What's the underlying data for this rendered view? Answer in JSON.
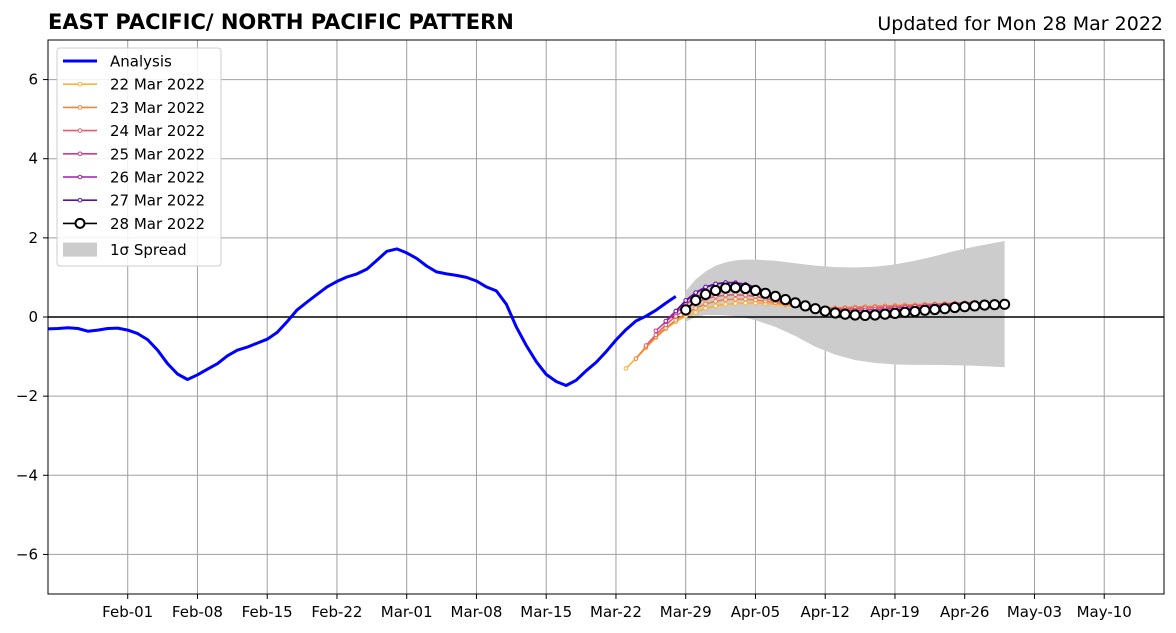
{
  "chart_data": {
    "type": "line",
    "title": "EAST PACIFIC/ NORTH PACIFIC PATTERN",
    "updated": "Updated for Mon 28 Mar 2022",
    "xlabel": "",
    "ylabel": "",
    "xlim": [
      "2022-01-24",
      "2022-05-16"
    ],
    "ylim": [
      -7,
      7
    ],
    "grid": true,
    "legend_position": "top-left",
    "x_ticks": [
      "2022-02-01",
      "2022-02-08",
      "2022-02-15",
      "2022-02-22",
      "2022-03-01",
      "2022-03-08",
      "2022-03-15",
      "2022-03-22",
      "2022-03-29",
      "2022-04-05",
      "2022-04-12",
      "2022-04-19",
      "2022-04-26",
      "2022-05-03",
      "2022-05-10"
    ],
    "x_tick_labels": [
      "Feb-01",
      "Feb-08",
      "Feb-15",
      "Feb-22",
      "Mar-01",
      "Mar-08",
      "Mar-15",
      "Mar-22",
      "Mar-29",
      "Apr-05",
      "Apr-12",
      "Apr-19",
      "Apr-26",
      "May-03",
      "May-10"
    ],
    "y_ticks": [
      -6,
      -4,
      -2,
      0,
      2,
      4,
      6
    ],
    "y_tick_labels": [
      "−6",
      "−4",
      "−2",
      "0",
      "2",
      "4",
      "6"
    ],
    "series": [
      {
        "name": "Analysis",
        "color": "#0000ff",
        "x": [
          "2022-01-24",
          "2022-01-25",
          "2022-01-26",
          "2022-01-27",
          "2022-01-28",
          "2022-01-29",
          "2022-01-30",
          "2022-01-31",
          "2022-02-01",
          "2022-02-02",
          "2022-02-03",
          "2022-02-04",
          "2022-02-05",
          "2022-02-06",
          "2022-02-07",
          "2022-02-08",
          "2022-02-09",
          "2022-02-10",
          "2022-02-11",
          "2022-02-12",
          "2022-02-13",
          "2022-02-14",
          "2022-02-15",
          "2022-02-16",
          "2022-02-17",
          "2022-02-18",
          "2022-02-19",
          "2022-02-20",
          "2022-02-21",
          "2022-02-22",
          "2022-02-23",
          "2022-02-24",
          "2022-02-25",
          "2022-02-26",
          "2022-02-27",
          "2022-02-28",
          "2022-03-01",
          "2022-03-02",
          "2022-03-03",
          "2022-03-04",
          "2022-03-05",
          "2022-03-06",
          "2022-03-07",
          "2022-03-08",
          "2022-03-09",
          "2022-03-10",
          "2022-03-11",
          "2022-03-12",
          "2022-03-13",
          "2022-03-14",
          "2022-03-15",
          "2022-03-16",
          "2022-03-17",
          "2022-03-18",
          "2022-03-19",
          "2022-03-20",
          "2022-03-21",
          "2022-03-22",
          "2022-03-23",
          "2022-03-24",
          "2022-03-25",
          "2022-03-26",
          "2022-03-27",
          "2022-03-28"
        ],
        "values": [
          -0.3,
          -0.29,
          -0.27,
          -0.29,
          -0.36,
          -0.33,
          -0.29,
          -0.28,
          -0.33,
          -0.42,
          -0.57,
          -0.84,
          -1.18,
          -1.44,
          -1.58,
          -1.46,
          -1.32,
          -1.18,
          -0.98,
          -0.84,
          -0.76,
          -0.66,
          -0.56,
          -0.39,
          -0.12,
          0.18,
          0.38,
          0.57,
          0.76,
          0.9,
          1.01,
          1.09,
          1.21,
          1.43,
          1.66,
          1.72,
          1.62,
          1.48,
          1.29,
          1.14,
          1.09,
          1.05,
          1.0,
          0.91,
          0.76,
          0.66,
          0.32,
          -0.25,
          -0.72,
          -1.13,
          -1.45,
          -1.63,
          -1.73,
          -1.6,
          -1.36,
          -1.15,
          -0.88,
          -0.58,
          -0.32,
          -0.1,
          0.02,
          0.17,
          0.35,
          0.52
        ]
      },
      {
        "name": "22 Mar 2022",
        "color": "#fcb03a",
        "x": [
          "2022-03-23",
          "2022-03-24",
          "2022-03-25",
          "2022-03-26",
          "2022-03-27",
          "2022-03-28",
          "2022-03-29",
          "2022-03-30",
          "2022-03-31",
          "2022-04-01",
          "2022-04-02",
          "2022-04-03",
          "2022-04-04",
          "2022-04-05",
          "2022-04-06",
          "2022-04-07",
          "2022-04-08",
          "2022-04-09",
          "2022-04-10",
          "2022-04-11",
          "2022-04-12",
          "2022-04-13",
          "2022-04-14",
          "2022-04-15",
          "2022-04-16",
          "2022-04-17",
          "2022-04-18",
          "2022-04-19",
          "2022-04-20",
          "2022-04-21",
          "2022-04-22",
          "2022-04-23",
          "2022-04-24",
          "2022-04-25",
          "2022-04-26",
          "2022-04-27"
        ],
        "values": [
          -1.3,
          -1.05,
          -0.78,
          -0.52,
          -0.3,
          -0.12,
          0.02,
          0.12,
          0.22,
          0.28,
          0.32,
          0.34,
          0.35,
          0.35,
          0.34,
          0.32,
          0.3,
          0.28,
          0.26,
          0.24,
          0.23,
          0.23,
          0.23,
          0.24,
          0.25,
          0.26,
          0.27,
          0.28,
          0.29,
          0.3,
          0.31,
          0.32,
          0.33,
          0.34,
          0.35,
          0.36
        ]
      },
      {
        "name": "23 Mar 2022",
        "color": "#f4813c",
        "x": [
          "2022-03-24",
          "2022-03-25",
          "2022-03-26",
          "2022-03-27",
          "2022-03-28",
          "2022-03-29",
          "2022-03-30",
          "2022-03-31",
          "2022-04-01",
          "2022-04-02",
          "2022-04-03",
          "2022-04-04",
          "2022-04-05",
          "2022-04-06",
          "2022-04-07",
          "2022-04-08",
          "2022-04-09",
          "2022-04-10",
          "2022-04-11",
          "2022-04-12",
          "2022-04-13",
          "2022-04-14",
          "2022-04-15",
          "2022-04-16",
          "2022-04-17",
          "2022-04-18",
          "2022-04-19",
          "2022-04-20",
          "2022-04-21",
          "2022-04-22",
          "2022-04-23",
          "2022-04-24",
          "2022-04-25",
          "2022-04-26",
          "2022-04-27"
        ],
        "values": [
          -1.05,
          -0.75,
          -0.5,
          -0.28,
          -0.08,
          0.08,
          0.22,
          0.33,
          0.4,
          0.44,
          0.45,
          0.45,
          0.43,
          0.4,
          0.36,
          0.32,
          0.29,
          0.26,
          0.24,
          0.23,
          0.23,
          0.24,
          0.25,
          0.26,
          0.27,
          0.28,
          0.29,
          0.3,
          0.31,
          0.32,
          0.33,
          0.34,
          0.35,
          0.36,
          0.37
        ]
      },
      {
        "name": "24 Mar 2022",
        "color": "#e25e6b",
        "x": [
          "2022-03-25",
          "2022-03-26",
          "2022-03-27",
          "2022-03-28",
          "2022-03-29",
          "2022-03-30",
          "2022-03-31",
          "2022-04-01",
          "2022-04-02",
          "2022-04-03",
          "2022-04-04",
          "2022-04-05",
          "2022-04-06",
          "2022-04-07",
          "2022-04-08",
          "2022-04-09",
          "2022-04-10",
          "2022-04-11",
          "2022-04-12",
          "2022-04-13",
          "2022-04-14",
          "2022-04-15",
          "2022-04-16",
          "2022-04-17",
          "2022-04-18",
          "2022-04-19",
          "2022-04-20",
          "2022-04-21",
          "2022-04-22",
          "2022-04-23",
          "2022-04-24",
          "2022-04-25",
          "2022-04-26",
          "2022-04-27",
          "2022-04-28"
        ],
        "values": [
          -0.72,
          -0.45,
          -0.2,
          0.02,
          0.2,
          0.35,
          0.46,
          0.52,
          0.55,
          0.56,
          0.55,
          0.52,
          0.47,
          0.41,
          0.36,
          0.31,
          0.27,
          0.24,
          0.22,
          0.21,
          0.21,
          0.22,
          0.23,
          0.24,
          0.25,
          0.26,
          0.27,
          0.28,
          0.29,
          0.3,
          0.31,
          0.32,
          0.33,
          0.34,
          0.35
        ]
      },
      {
        "name": "25 Mar 2022",
        "color": "#c33f8e",
        "x": [
          "2022-03-26",
          "2022-03-27",
          "2022-03-28",
          "2022-03-29",
          "2022-03-30",
          "2022-03-31",
          "2022-04-01",
          "2022-04-02",
          "2022-04-03",
          "2022-04-04",
          "2022-04-05",
          "2022-04-06",
          "2022-04-07",
          "2022-04-08",
          "2022-04-09",
          "2022-04-10",
          "2022-04-11",
          "2022-04-12",
          "2022-04-13",
          "2022-04-14",
          "2022-04-15",
          "2022-04-16",
          "2022-04-17",
          "2022-04-18",
          "2022-04-19",
          "2022-04-20",
          "2022-04-21",
          "2022-04-22",
          "2022-04-23",
          "2022-04-24",
          "2022-04-25",
          "2022-04-26",
          "2022-04-27",
          "2022-04-28"
        ],
        "values": [
          -0.35,
          -0.12,
          0.1,
          0.32,
          0.5,
          0.62,
          0.69,
          0.72,
          0.72,
          0.69,
          0.64,
          0.57,
          0.49,
          0.41,
          0.34,
          0.28,
          0.23,
          0.2,
          0.18,
          0.17,
          0.17,
          0.18,
          0.19,
          0.21,
          0.23,
          0.25,
          0.27,
          0.29,
          0.31,
          0.32,
          0.34,
          0.35,
          0.36,
          0.37
        ]
      },
      {
        "name": "26 Mar 2022",
        "color": "#9c1fb0",
        "x": [
          "2022-03-27",
          "2022-03-28",
          "2022-03-29",
          "2022-03-30",
          "2022-03-31",
          "2022-04-01",
          "2022-04-02",
          "2022-04-03",
          "2022-04-04",
          "2022-04-05",
          "2022-04-06",
          "2022-04-07",
          "2022-04-08",
          "2022-04-09",
          "2022-04-10",
          "2022-04-11",
          "2022-04-12",
          "2022-04-13",
          "2022-04-14",
          "2022-04-15",
          "2022-04-16",
          "2022-04-17",
          "2022-04-18",
          "2022-04-19",
          "2022-04-20",
          "2022-04-21",
          "2022-04-22",
          "2022-04-23",
          "2022-04-24",
          "2022-04-25",
          "2022-04-26",
          "2022-04-27",
          "2022-04-28",
          "2022-04-29"
        ],
        "values": [
          -0.1,
          0.15,
          0.4,
          0.6,
          0.75,
          0.83,
          0.87,
          0.87,
          0.83,
          0.76,
          0.66,
          0.55,
          0.44,
          0.34,
          0.26,
          0.2,
          0.15,
          0.12,
          0.11,
          0.11,
          0.12,
          0.14,
          0.16,
          0.18,
          0.2,
          0.22,
          0.24,
          0.26,
          0.28,
          0.3,
          0.31,
          0.32,
          0.33,
          0.34
        ]
      },
      {
        "name": "27 Mar 2022",
        "color": "#5a0fa0",
        "x": [
          "2022-03-28",
          "2022-03-29",
          "2022-03-30",
          "2022-03-31",
          "2022-04-01",
          "2022-04-02",
          "2022-04-03",
          "2022-04-04",
          "2022-04-05",
          "2022-04-06",
          "2022-04-07",
          "2022-04-08",
          "2022-04-09",
          "2022-04-10",
          "2022-04-11",
          "2022-04-12",
          "2022-04-13",
          "2022-04-14",
          "2022-04-15",
          "2022-04-16",
          "2022-04-17",
          "2022-04-18",
          "2022-04-19",
          "2022-04-20",
          "2022-04-21",
          "2022-04-22",
          "2022-04-23",
          "2022-04-24",
          "2022-04-25",
          "2022-04-26",
          "2022-04-27",
          "2022-04-28",
          "2022-04-29",
          "2022-04-30"
        ],
        "values": [
          0.15,
          0.42,
          0.62,
          0.76,
          0.84,
          0.87,
          0.86,
          0.81,
          0.73,
          0.62,
          0.51,
          0.4,
          0.3,
          0.22,
          0.16,
          0.12,
          0.09,
          0.08,
          0.08,
          0.09,
          0.11,
          0.13,
          0.15,
          0.17,
          0.19,
          0.21,
          0.23,
          0.25,
          0.27,
          0.29,
          0.3,
          0.31,
          0.32,
          0.33
        ]
      },
      {
        "name": "28 Mar 2022",
        "color": "#000000",
        "marker": "open-circle",
        "x": [
          "2022-03-29",
          "2022-03-30",
          "2022-03-31",
          "2022-04-01",
          "2022-04-02",
          "2022-04-03",
          "2022-04-04",
          "2022-04-05",
          "2022-04-06",
          "2022-04-07",
          "2022-04-08",
          "2022-04-09",
          "2022-04-10",
          "2022-04-11",
          "2022-04-12",
          "2022-04-13",
          "2022-04-14",
          "2022-04-15",
          "2022-04-16",
          "2022-04-17",
          "2022-04-18",
          "2022-04-19",
          "2022-04-20",
          "2022-04-21",
          "2022-04-22",
          "2022-04-23",
          "2022-04-24",
          "2022-04-25",
          "2022-04-26",
          "2022-04-27",
          "2022-04-28",
          "2022-04-29",
          "2022-04-30"
        ],
        "values": [
          0.18,
          0.42,
          0.57,
          0.67,
          0.73,
          0.74,
          0.72,
          0.67,
          0.6,
          0.52,
          0.44,
          0.36,
          0.28,
          0.21,
          0.15,
          0.1,
          0.07,
          0.05,
          0.04,
          0.05,
          0.07,
          0.09,
          0.12,
          0.14,
          0.17,
          0.19,
          0.21,
          0.24,
          0.26,
          0.28,
          0.3,
          0.31,
          0.32
        ]
      }
    ],
    "spread": {
      "name": "1σ Spread",
      "color": "#cccccc",
      "x": [
        "2022-03-29",
        "2022-03-30",
        "2022-03-31",
        "2022-04-01",
        "2022-04-02",
        "2022-04-03",
        "2022-04-04",
        "2022-04-05",
        "2022-04-07",
        "2022-04-09",
        "2022-04-11",
        "2022-04-13",
        "2022-04-15",
        "2022-04-17",
        "2022-04-19",
        "2022-04-21",
        "2022-04-23",
        "2022-04-25",
        "2022-04-27",
        "2022-04-30"
      ],
      "upper": [
        0.65,
        0.95,
        1.15,
        1.3,
        1.38,
        1.43,
        1.45,
        1.45,
        1.42,
        1.36,
        1.3,
        1.26,
        1.25,
        1.27,
        1.33,
        1.42,
        1.54,
        1.67,
        1.78,
        1.92
      ],
      "lower": [
        -0.12,
        0.0,
        0.05,
        0.05,
        0.04,
        0.02,
        -0.02,
        -0.08,
        -0.25,
        -0.48,
        -0.75,
        -0.95,
        -1.09,
        -1.16,
        -1.2,
        -1.21,
        -1.21,
        -1.22,
        -1.23,
        -1.27
      ]
    },
    "reference_line": 0
  }
}
